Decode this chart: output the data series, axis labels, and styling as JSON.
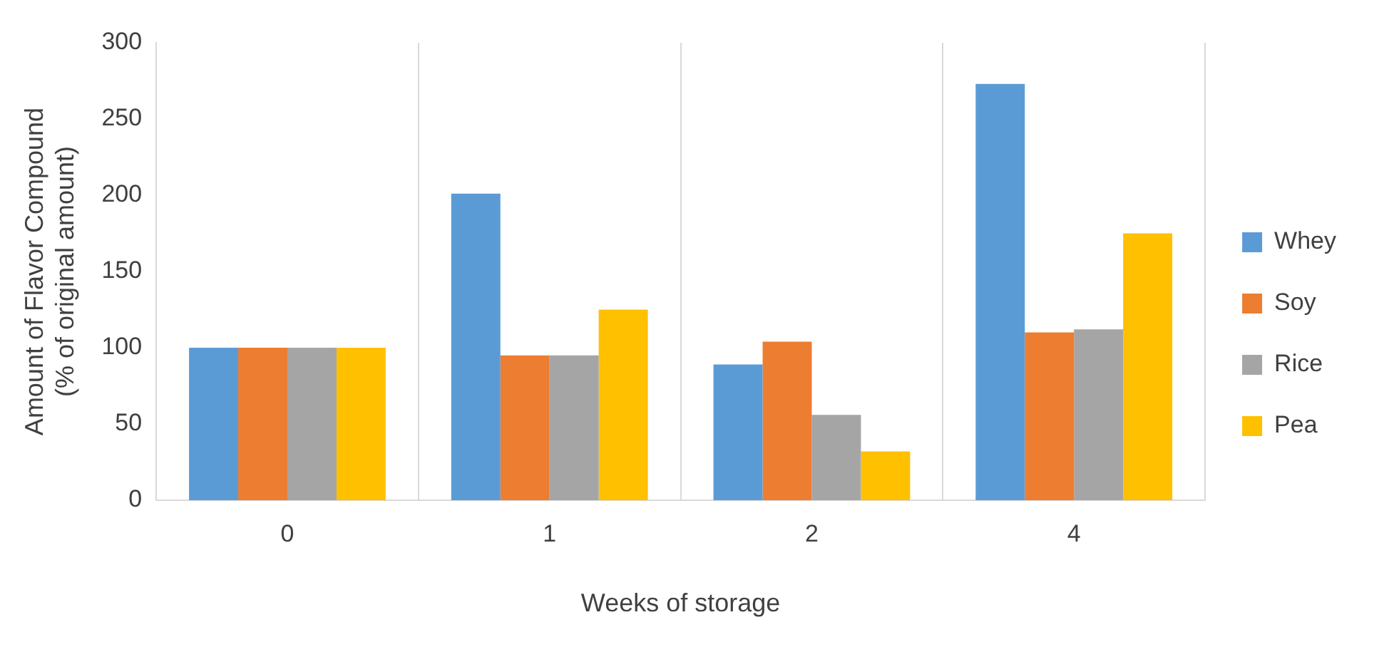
{
  "chart_data": {
    "type": "bar",
    "xlabel": "Weeks of storage",
    "ylabel": "Amount of Flavor Compound\n(% of original amount)",
    "categories": [
      "0",
      "1",
      "2",
      "4"
    ],
    "series": [
      {
        "name": "Whey",
        "color": "#5b9bd5",
        "values": [
          100,
          201,
          89,
          273
        ]
      },
      {
        "name": "Soy",
        "color": "#ed7d31",
        "values": [
          100,
          95,
          104,
          110
        ]
      },
      {
        "name": "Rice",
        "color": "#a5a5a5",
        "values": [
          100,
          95,
          56,
          112
        ]
      },
      {
        "name": "Pea",
        "color": "#ffc000",
        "values": [
          100,
          125,
          32,
          175
        ]
      }
    ],
    "ylim": [
      0,
      300
    ],
    "yticks": [
      0,
      50,
      100,
      150,
      200,
      250,
      300
    ],
    "grid": "x",
    "legend": "right"
  }
}
